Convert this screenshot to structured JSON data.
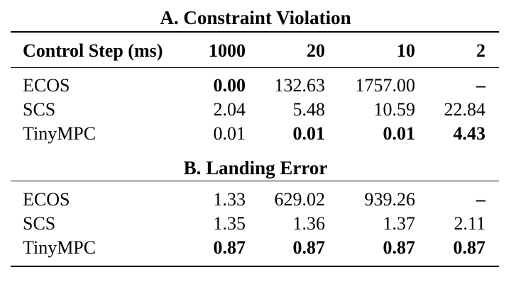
{
  "section_a": {
    "title": "A. Constraint Violation"
  },
  "header": {
    "label": "Control Step (ms)",
    "cols": [
      "1000",
      "20",
      "10",
      "2"
    ]
  },
  "table_a": [
    {
      "name": "ECOS",
      "values": [
        "0.00",
        "132.63",
        "1757.00",
        "–"
      ],
      "bold": [
        true,
        false,
        false,
        true
      ]
    },
    {
      "name": "SCS",
      "values": [
        "2.04",
        "5.48",
        "10.59",
        "22.84"
      ],
      "bold": [
        false,
        false,
        false,
        false
      ]
    },
    {
      "name": "TinyMPC",
      "values": [
        "0.01",
        "0.01",
        "0.01",
        "4.43"
      ],
      "bold": [
        false,
        true,
        true,
        true
      ]
    }
  ],
  "section_b": {
    "title": "B. Landing Error"
  },
  "table_b": [
    {
      "name": "ECOS",
      "values": [
        "1.33",
        "629.02",
        "939.26",
        "–"
      ],
      "bold": [
        false,
        false,
        false,
        true
      ]
    },
    {
      "name": "SCS",
      "values": [
        "1.35",
        "1.36",
        "1.37",
        "2.11"
      ],
      "bold": [
        false,
        false,
        false,
        false
      ]
    },
    {
      "name": "TinyMPC",
      "values": [
        "0.87",
        "0.87",
        "0.87",
        "0.87"
      ],
      "bold": [
        true,
        true,
        true,
        true
      ]
    }
  ]
}
